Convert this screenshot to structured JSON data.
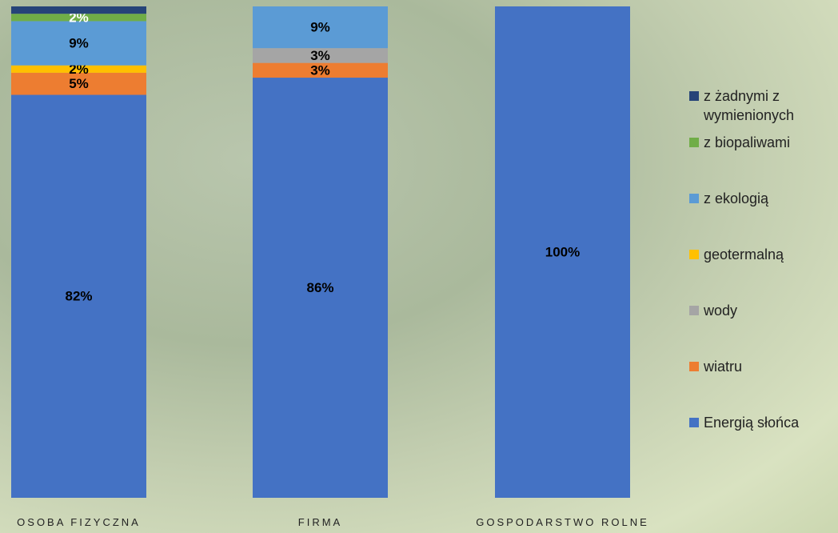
{
  "chart_data": {
    "type": "stacked_bar",
    "categories": [
      "OSOBA FIZYCZNA",
      "FIRMA",
      "GOSPODARSTWO ROLNE"
    ],
    "series": [
      {
        "name": "Energią słońca",
        "color": "#4472c4",
        "label_color": "#000000",
        "values": [
          82,
          85.5,
          100
        ],
        "value_labels": [
          "82%",
          "86%",
          "100%"
        ]
      },
      {
        "name": "wiatru",
        "color": "#ed7d31",
        "label_color": "#000000",
        "values": [
          4.5,
          3,
          0
        ],
        "value_labels": [
          "5%",
          "3%",
          null
        ]
      },
      {
        "name": "wody",
        "color": "#a5a5a5",
        "label_color": "#000000",
        "values": [
          0,
          3,
          0
        ],
        "value_labels": [
          null,
          "3%",
          null
        ]
      },
      {
        "name": "geotermalną",
        "color": "#ffc000",
        "label_color": "#000000",
        "values": [
          1.5,
          0,
          0
        ],
        "value_labels": [
          "2%",
          null,
          null
        ]
      },
      {
        "name": "z ekologią",
        "color": "#5b9bd5",
        "label_color": "#000000",
        "values": [
          9,
          8.5,
          0
        ],
        "value_labels": [
          "9%",
          "9%",
          null
        ]
      },
      {
        "name": "z biopaliwami",
        "color": "#70ad47",
        "label_color": "#ffffff",
        "values": [
          1.5,
          0,
          0
        ],
        "value_labels": [
          "2%",
          null,
          null
        ]
      },
      {
        "name": "z żadnymi z wymienionych",
        "color": "#264478",
        "label_color": "#000000",
        "values": [
          1.5,
          0,
          0
        ],
        "value_labels": [
          null,
          null,
          null
        ]
      }
    ],
    "ylim": [
      0,
      100
    ],
    "legend": "right"
  }
}
